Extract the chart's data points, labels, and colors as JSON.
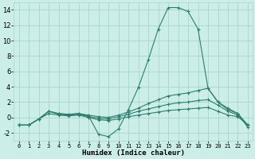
{
  "xlabel": "Humidex (Indice chaleur)",
  "bg_color": "#cceee8",
  "grid_color": "#aad4cc",
  "line_color": "#2e7d6e",
  "xlim": [
    -0.5,
    23.5
  ],
  "ylim": [
    -3,
    15
  ],
  "yticks": [
    -2,
    0,
    2,
    4,
    6,
    8,
    10,
    12,
    14
  ],
  "xticks": [
    0,
    1,
    2,
    3,
    4,
    5,
    6,
    7,
    8,
    9,
    10,
    11,
    12,
    13,
    14,
    15,
    16,
    17,
    18,
    19,
    20,
    21,
    22,
    23
  ],
  "series": [
    {
      "x": [
        0,
        1,
        2,
        3,
        4,
        5,
        6,
        7,
        8,
        9,
        10,
        11,
        12,
        13,
        14,
        15,
        16,
        17,
        18,
        19,
        20,
        21,
        22,
        23
      ],
      "y": [
        -1.0,
        -1.0,
        -0.2,
        0.8,
        0.5,
        0.4,
        0.5,
        0.2,
        -2.2,
        -2.5,
        -1.5,
        1.0,
        3.9,
        7.5,
        11.5,
        14.3,
        14.3,
        13.8,
        11.5,
        3.8,
        2.0,
        1.2,
        0.5,
        -1.3
      ]
    },
    {
      "x": [
        0,
        1,
        2,
        3,
        4,
        5,
        6,
        7,
        8,
        9,
        10,
        11,
        12,
        13,
        14,
        15,
        16,
        17,
        18,
        19,
        20,
        21,
        22,
        23
      ],
      "y": [
        -1.0,
        -1.0,
        -0.2,
        0.8,
        0.5,
        0.4,
        0.5,
        0.3,
        0.1,
        0.0,
        0.3,
        0.7,
        1.2,
        1.8,
        2.3,
        2.8,
        3.0,
        3.2,
        3.5,
        3.8,
        2.0,
        1.0,
        0.5,
        -1.0
      ]
    },
    {
      "x": [
        0,
        1,
        2,
        3,
        4,
        5,
        6,
        7,
        8,
        9,
        10,
        11,
        12,
        13,
        14,
        15,
        16,
        17,
        18,
        19,
        20,
        21,
        22,
        23
      ],
      "y": [
        -1.0,
        -1.0,
        -0.2,
        0.8,
        0.4,
        0.3,
        0.4,
        0.1,
        -0.1,
        -0.2,
        0.1,
        0.4,
        0.8,
        1.1,
        1.4,
        1.7,
        1.9,
        2.0,
        2.2,
        2.3,
        1.6,
        0.8,
        0.3,
        -1.0
      ]
    },
    {
      "x": [
        0,
        1,
        2,
        3,
        4,
        5,
        6,
        7,
        8,
        9,
        10,
        11,
        12,
        13,
        14,
        15,
        16,
        17,
        18,
        19,
        20,
        21,
        22,
        23
      ],
      "y": [
        -1.0,
        -1.0,
        -0.2,
        0.5,
        0.3,
        0.2,
        0.3,
        0.0,
        -0.3,
        -0.4,
        -0.2,
        0.1,
        0.3,
        0.5,
        0.7,
        0.9,
        1.0,
        1.1,
        1.2,
        1.3,
        0.8,
        0.3,
        0.1,
        -1.0
      ]
    }
  ]
}
